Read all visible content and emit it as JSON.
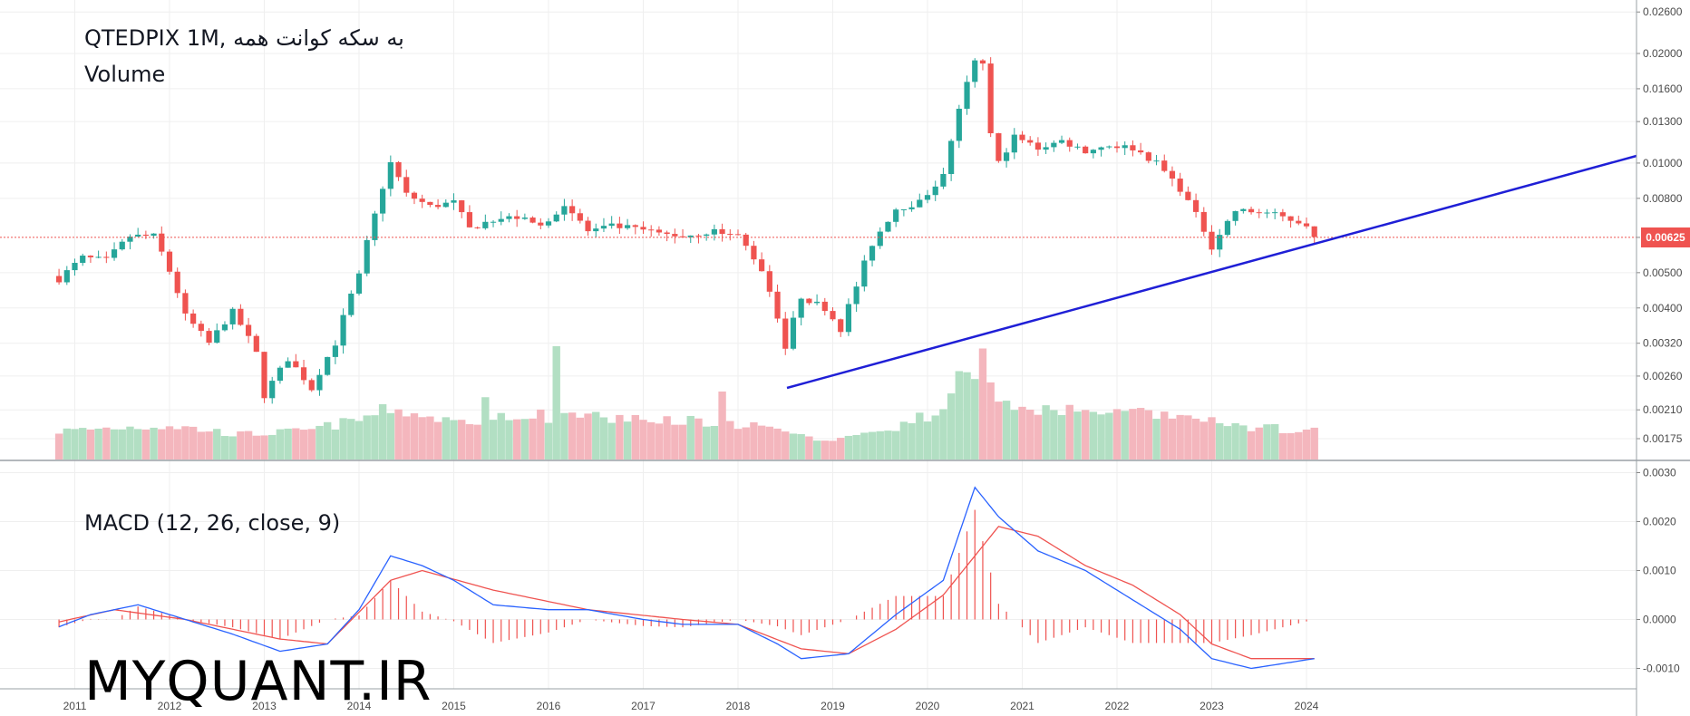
{
  "legend": {
    "main": "QTEDPIX 1M, به سکه کوانت همه",
    "volume": "Volume",
    "macd": "MACD (12, 26, close, 9)"
  },
  "watermark": "MYQUANT.IR",
  "last_price_label": "0.00625",
  "colors": {
    "up": "#26a69a",
    "down": "#ef5350",
    "vol_up": "#b2dfc3",
    "vol_down": "#f4b6bd",
    "trendline": "#1f1fd6",
    "macd_line": "#2962ff",
    "signal_line": "#ef5350",
    "grid": "#efefef",
    "axis_text": "#4a4a4a",
    "last_price_line": "#ef5350"
  },
  "chart_data": [
    {
      "type": "candlestick",
      "title": "QTEDPIX 1M, به سکه کوانت همه",
      "x_axis_labels": [
        "2011",
        "2012",
        "2013",
        "2014",
        "2015",
        "2016",
        "2017",
        "2018",
        "2019",
        "2020",
        "2021",
        "2022",
        "2023",
        "2024"
      ],
      "y_axis_ticks": [
        "0.02600",
        "0.02000",
        "0.01600",
        "0.01300",
        "0.01000",
        "0.00800",
        "0.00625",
        "0.00500",
        "0.00400",
        "0.00320",
        "0.00260",
        "0.00210",
        "0.00175"
      ],
      "y_scale": "log",
      "last_price": "0.00625",
      "anchors": [
        [
          "2010-11",
          0.0048
        ],
        [
          "2011-02",
          0.0055
        ],
        [
          "2011-05",
          0.0054
        ],
        [
          "2011-08",
          0.0063
        ],
        [
          "2011-11",
          0.0063
        ],
        [
          "2012-03",
          0.0038
        ],
        [
          "2012-06",
          0.0032
        ],
        [
          "2012-09",
          0.0039
        ],
        [
          "2012-12",
          0.003
        ],
        [
          "2013-01",
          0.0023
        ],
        [
          "2013-04",
          0.0029
        ],
        [
          "2013-07",
          0.0024
        ],
        [
          "2013-10",
          0.0032
        ],
        [
          "2014-01",
          0.0049
        ],
        [
          "2014-03",
          0.0072
        ],
        [
          "2014-05",
          0.01
        ],
        [
          "2014-07",
          0.0082
        ],
        [
          "2014-10",
          0.0076
        ],
        [
          "2015-01",
          0.0078
        ],
        [
          "2015-03",
          0.0066
        ],
        [
          "2015-06",
          0.007
        ],
        [
          "2015-09",
          0.0071
        ],
        [
          "2015-12",
          0.0067
        ],
        [
          "2016-03",
          0.0077
        ],
        [
          "2016-06",
          0.0065
        ],
        [
          "2016-09",
          0.0067
        ],
        [
          "2016-12",
          0.0066
        ],
        [
          "2017-03",
          0.0064
        ],
        [
          "2017-06",
          0.0063
        ],
        [
          "2017-10",
          0.0065
        ],
        [
          "2018-01",
          0.0063
        ],
        [
          "2018-04",
          0.0051
        ],
        [
          "2018-06",
          0.0038
        ],
        [
          "2018-07",
          0.0031
        ],
        [
          "2018-09",
          0.0043
        ],
        [
          "2018-12",
          0.004
        ],
        [
          "2019-02",
          0.0035
        ],
        [
          "2019-04",
          0.0046
        ],
        [
          "2019-06",
          0.006
        ],
        [
          "2019-09",
          0.0075
        ],
        [
          "2019-12",
          0.0078
        ],
        [
          "2020-03",
          0.0092
        ],
        [
          "2020-05",
          0.014
        ],
        [
          "2020-07",
          0.019
        ],
        [
          "2020-08",
          0.0185
        ],
        [
          "2020-09",
          0.012
        ],
        [
          "2020-10",
          0.01
        ],
        [
          "2020-12",
          0.0118
        ],
        [
          "2021-03",
          0.011
        ],
        [
          "2021-06",
          0.0115
        ],
        [
          "2021-09",
          0.0108
        ],
        [
          "2021-12",
          0.0112
        ],
        [
          "2022-03",
          0.011
        ],
        [
          "2022-06",
          0.01
        ],
        [
          "2022-09",
          0.0085
        ],
        [
          "2023-01",
          0.0059
        ],
        [
          "2023-04",
          0.0074
        ],
        [
          "2023-08",
          0.0073
        ],
        [
          "2023-10",
          0.0071
        ],
        [
          "2024-01",
          0.0068
        ],
        [
          "2024-02",
          0.0062
        ]
      ]
    },
    {
      "type": "bar",
      "name": "Volume",
      "note_units": "relative",
      "anchors": [
        [
          "2010-11",
          0.25
        ],
        [
          "2011-06",
          0.28
        ],
        [
          "2012-01",
          0.3
        ],
        [
          "2012-10",
          0.22
        ],
        [
          "2013-06",
          0.25
        ],
        [
          "2014-01",
          0.35
        ],
        [
          "2014-05",
          0.45
        ],
        [
          "2015-01",
          0.33
        ],
        [
          "2015-08",
          0.4
        ],
        [
          "2016-01",
          0.38
        ],
        [
          "2016-06",
          0.38
        ],
        [
          "2017-03",
          0.35
        ],
        [
          "2017-09",
          0.34
        ],
        [
          "2018-03",
          0.3
        ],
        [
          "2018-10",
          0.18
        ],
        [
          "2019-04",
          0.2
        ],
        [
          "2019-10",
          0.3
        ],
        [
          "2020-03",
          0.45
        ],
        [
          "2020-07",
          0.75
        ],
        [
          "2020-11",
          0.5
        ],
        [
          "2021-03",
          0.42
        ],
        [
          "2021-09",
          0.44
        ],
        [
          "2022-03",
          0.4
        ],
        [
          "2022-09",
          0.38
        ],
        [
          "2023-03",
          0.3
        ],
        [
          "2024-02",
          0.25
        ]
      ],
      "spikes": [
        [
          "2016-02",
          1.0
        ],
        [
          "2017-11",
          0.6
        ],
        [
          "2020-08",
          0.98
        ],
        [
          "2020-05",
          0.78
        ],
        [
          "2015-05",
          0.55
        ]
      ]
    },
    {
      "type": "line",
      "name": "MACD (12, 26, close, 9)",
      "y_axis_ticks": [
        "0.0030",
        "0.0020",
        "0.0010",
        "0.0000",
        "-0.0010"
      ],
      "series": [
        {
          "name": "MACD",
          "points": [
            [
              "2010-11",
              -0.00015
            ],
            [
              "2011-03",
              0.0001
            ],
            [
              "2011-09",
              0.0003
            ],
            [
              "2012-03",
              0.0
            ],
            [
              "2012-09",
              -0.0003
            ],
            [
              "2013-03",
              -0.00065
            ],
            [
              "2013-09",
              -0.0005
            ],
            [
              "2014-01",
              0.0002
            ],
            [
              "2014-05",
              0.0013
            ],
            [
              "2014-09",
              0.0011
            ],
            [
              "2015-01",
              0.0008
            ],
            [
              "2015-06",
              0.0003
            ],
            [
              "2016-01",
              0.0002
            ],
            [
              "2016-06",
              0.0002
            ],
            [
              "2017-01",
              0.0
            ],
            [
              "2017-06",
              -0.0001
            ],
            [
              "2018-01",
              -0.0001
            ],
            [
              "2018-06",
              -0.0005
            ],
            [
              "2018-09",
              -0.0008
            ],
            [
              "2019-03",
              -0.0007
            ],
            [
              "2019-09",
              0.0001
            ],
            [
              "2020-03",
              0.0008
            ],
            [
              "2020-07",
              0.0027
            ],
            [
              "2020-10",
              0.0021
            ],
            [
              "2021-03",
              0.0014
            ],
            [
              "2021-09",
              0.001
            ],
            [
              "2022-03",
              0.0004
            ],
            [
              "2022-09",
              -0.0002
            ],
            [
              "2023-01",
              -0.0008
            ],
            [
              "2023-06",
              -0.001
            ],
            [
              "2024-02",
              -0.0008
            ]
          ]
        },
        {
          "name": "Signal",
          "points": [
            [
              "2010-11",
              -5e-05
            ],
            [
              "2011-06",
              0.0002
            ],
            [
              "2012-03",
              0.0
            ],
            [
              "2013-03",
              -0.0004
            ],
            [
              "2013-09",
              -0.0005
            ],
            [
              "2014-05",
              0.0008
            ],
            [
              "2014-09",
              0.001
            ],
            [
              "2015-06",
              0.0006
            ],
            [
              "2016-06",
              0.0002
            ],
            [
              "2017-06",
              0.0
            ],
            [
              "2018-01",
              -0.0001
            ],
            [
              "2018-09",
              -0.0006
            ],
            [
              "2019-03",
              -0.0007
            ],
            [
              "2019-09",
              -0.0002
            ],
            [
              "2020-03",
              0.0005
            ],
            [
              "2020-10",
              0.0019
            ],
            [
              "2021-03",
              0.0017
            ],
            [
              "2021-09",
              0.0011
            ],
            [
              "2022-03",
              0.0007
            ],
            [
              "2022-09",
              0.0001
            ],
            [
              "2023-01",
              -0.0005
            ],
            [
              "2023-06",
              -0.0008
            ],
            [
              "2024-02",
              -0.0008
            ]
          ]
        }
      ]
    }
  ]
}
